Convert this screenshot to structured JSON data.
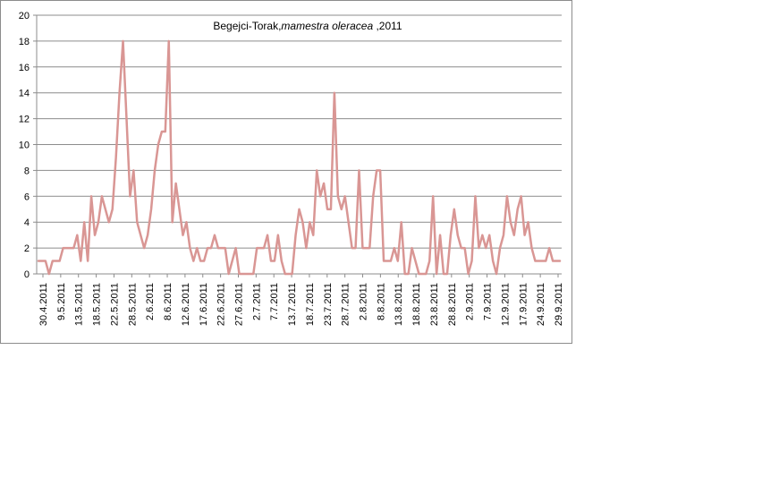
{
  "chart_data": {
    "type": "line",
    "title_prefix": "Begejci-Torak,",
    "title_italic": "mamestra oleracea",
    "title_suffix": " ,2011",
    "xlabel": "",
    "ylabel": "",
    "ylim": [
      0,
      20
    ],
    "yticks": [
      "0",
      "2",
      "4",
      "6",
      "8",
      "10",
      "12",
      "14",
      "16",
      "18",
      "20"
    ],
    "grid": true,
    "legend": "none",
    "line_color": "#d99694",
    "x_tick_labels": [
      "30.4.2011",
      "9.5.2011",
      "13.5.2011",
      "18.5.2011",
      "22.5.2011",
      "28.5.2011",
      "2.6.2011",
      "8.6.2011",
      "12.6.2011",
      "17.6.2011",
      "22.6.2011",
      "27.6.2011",
      "2.7.2011",
      "7.7.2011",
      "13.7.2011",
      "18.7.2011",
      "23.7.2011",
      "28.7.2011",
      "2.8.2011",
      "8.8.2011",
      "13.8.2011",
      "18.8.2011",
      "23.8.2011",
      "28.8.2011",
      "2.9.2011",
      "7.9.2011",
      "12.9.2011",
      "17.9.2011",
      "24.9.2011",
      "29.9.2011"
    ],
    "values": [
      1,
      1,
      1,
      0,
      1,
      1,
      1,
      2,
      2,
      2,
      2,
      3,
      1,
      4,
      1,
      6,
      3,
      4,
      6,
      5,
      4,
      5,
      9,
      14,
      18,
      12,
      6,
      8,
      4,
      3,
      2,
      3,
      5,
      8,
      10,
      11,
      11,
      18,
      4,
      7,
      5,
      3,
      4,
      2,
      1,
      2,
      1,
      1,
      2,
      2,
      3,
      2,
      2,
      2,
      0,
      1,
      2,
      0,
      0,
      0,
      0,
      0,
      2,
      2,
      2,
      3,
      1,
      1,
      3,
      1,
      0,
      0,
      0,
      3,
      5,
      4,
      2,
      4,
      3,
      8,
      6,
      7,
      5,
      5,
      14,
      6,
      5,
      6,
      4,
      2,
      2,
      8,
      2,
      2,
      2,
      6,
      8,
      8,
      1,
      1,
      1,
      2,
      1,
      4,
      0,
      0,
      2,
      1,
      0,
      0,
      0,
      1,
      6,
      0,
      3,
      0,
      0,
      3,
      5,
      3,
      2,
      2,
      0,
      1,
      6,
      2,
      3,
      2,
      3,
      1,
      0,
      2,
      3,
      6,
      4,
      3,
      5,
      6,
      3,
      4,
      2,
      1,
      1,
      1,
      1,
      2,
      1,
      1,
      1
    ]
  }
}
